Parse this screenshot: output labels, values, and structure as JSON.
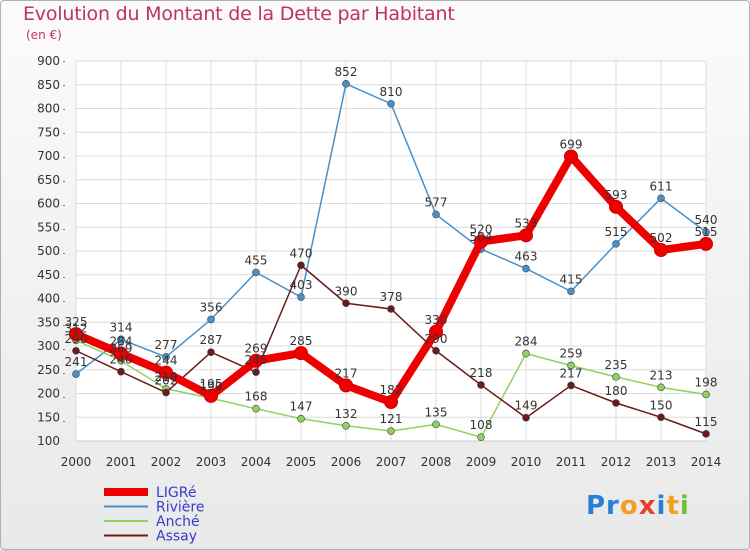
{
  "chart_data": {
    "type": "line",
    "title": "Evolution du Montant de la Dette par Habitant",
    "subtitle": "(en €)",
    "xlabel": "",
    "ylabel": "",
    "x": [
      "2000",
      "2001",
      "2002",
      "2003",
      "2004",
      "2005",
      "2006",
      "2007",
      "2008",
      "2009",
      "2010",
      "2011",
      "2012",
      "2013",
      "2014"
    ],
    "ylim": [
      100,
      900
    ],
    "yticks": [
      "100",
      "150",
      "200",
      "250",
      "300",
      "350",
      "400",
      "450",
      "500",
      "550",
      "600",
      "650",
      "700",
      "750",
      "800",
      "850",
      "900"
    ],
    "grid": true,
    "legend_position": "bottom-left",
    "series": [
      {
        "name": "LIGRé",
        "color": "#ee0000",
        "emphasis": true,
        "values": [
          325,
          284,
          244,
          195,
          269,
          285,
          217,
          182,
          330,
          520,
          533,
          699,
          593,
          502,
          515
        ]
      },
      {
        "name": "Rivière",
        "color": "#4a90c8",
        "emphasis": false,
        "values": [
          241,
          314,
          277,
          356,
          455,
          403,
          852,
          810,
          577,
          504,
          463,
          415,
          515,
          611,
          540
        ]
      },
      {
        "name": "Anché",
        "color": "#90d060",
        "emphasis": false,
        "values": [
          312,
          269,
          210,
          190,
          168,
          147,
          132,
          121,
          135,
          108,
          284,
          259,
          235,
          213,
          198
        ]
      },
      {
        "name": "Assay",
        "color": "#6a1a1a",
        "emphasis": false,
        "values": [
          290,
          246,
          202,
          287,
          245,
          470,
          390,
          378,
          290,
          218,
          149,
          217,
          180,
          150,
          115
        ]
      }
    ]
  },
  "brand": {
    "name": "Proxiti",
    "parts": [
      "Pr",
      "o",
      "x",
      "i",
      "t",
      "i"
    ]
  }
}
